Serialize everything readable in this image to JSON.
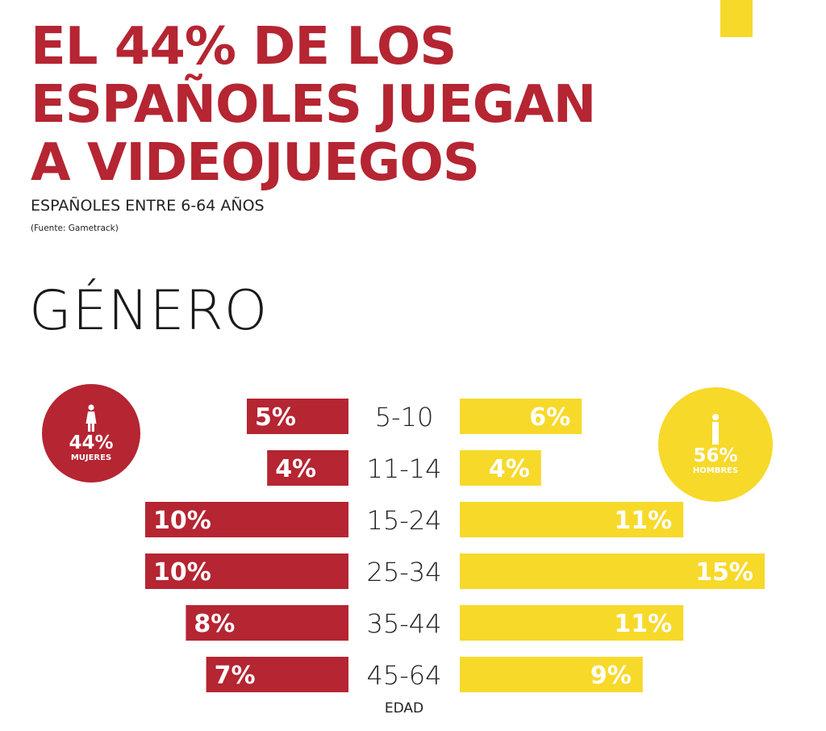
{
  "colors": {
    "red": "#b52532",
    "yellow": "#f7d92a",
    "dark_text": "#222222"
  },
  "header": {
    "title_lines": [
      "EL 44% DE LOS",
      "ESPAÑOLES JUEGAN",
      "A VIDEOJUEGOS"
    ],
    "subtitle": "ESPAÑOLES ENTRE 6-64 AÑOS",
    "source": "(Fuente: Gametrack)"
  },
  "section": {
    "title": "GÉNERO"
  },
  "women": {
    "percent": "44%",
    "label": "MUJERES",
    "icon": "female-icon"
  },
  "men": {
    "percent": "56%",
    "label": "HOMBRES",
    "icon": "male-icon"
  },
  "chart_data": {
    "type": "bar",
    "orientation": "horizontal-butterfly",
    "title": "GÉNERO",
    "xlabel": "EDAD",
    "categories": [
      "5-10",
      "11-14",
      "15-24",
      "25-34",
      "35-44",
      "45-64"
    ],
    "series": [
      {
        "name": "MUJERES",
        "values": [
          5,
          4,
          10,
          10,
          8,
          7
        ],
        "labels": [
          "5%",
          "4%",
          "10%",
          "10%",
          "8%",
          "7%"
        ],
        "color": "#b52532"
      },
      {
        "name": "HOMBRES",
        "values": [
          6,
          4,
          11,
          15,
          11,
          9
        ],
        "labels": [
          "6%",
          "4%",
          "11%",
          "15%",
          "11%",
          "9%"
        ],
        "color": "#f7d92a"
      }
    ],
    "unit": "%",
    "max_value": 15
  }
}
